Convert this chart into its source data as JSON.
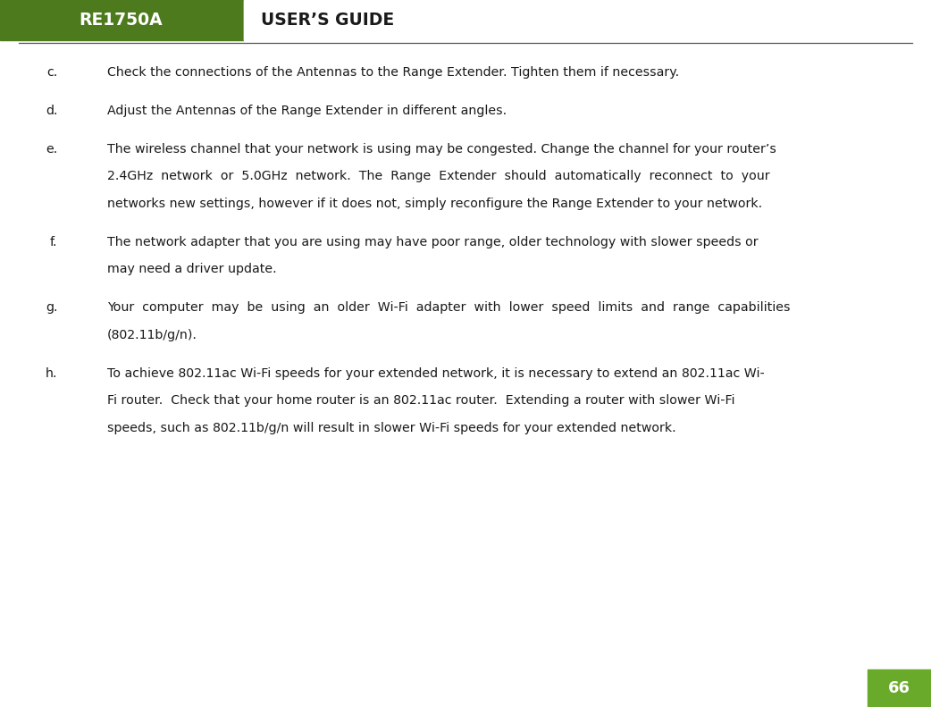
{
  "header_bg_color": "#4e7a1e",
  "header_text_re": "RE1750A",
  "header_text_guide": "USER’S GUIDE",
  "page_bg_color": "#ffffff",
  "footer_bg_color": "#6aaa2a",
  "footer_text": "66",
  "footer_text_color": "#ffffff",
  "body_text_color": "#1a1a1a",
  "figsize": [
    10.42,
    7.91
  ],
  "dpi": 100,
  "items": [
    {
      "label": "c.",
      "lines": [
        "Check the connections of the Antennas to the Range Extender. Tighten them if necessary."
      ]
    },
    {
      "label": "d.",
      "lines": [
        "Adjust the Antennas of the Range Extender in different angles."
      ]
    },
    {
      "label": "e.",
      "lines": [
        "The wireless channel that your network is using may be congested. Change the channel for your router’s",
        "2.4GHz  network  or  5.0GHz  network.  The  Range  Extender  should  automatically  reconnect  to  your",
        "networks new settings, however if it does not, simply reconfigure the Range Extender to your network."
      ]
    },
    {
      "label": "f.",
      "lines": [
        "The network adapter that you are using may have poor range, older technology with slower speeds or",
        "may need a driver update."
      ]
    },
    {
      "label": "g.",
      "lines": [
        "Your  computer  may  be  using  an  older  Wi-Fi  adapter  with  lower  speed  limits  and  range  capabilities",
        "(802.11b/g/n)."
      ]
    },
    {
      "label": "h.",
      "lines": [
        "To achieve 802.11ac Wi-Fi speeds for your extended network, it is necessary to extend an 802.11ac Wi-",
        "Fi router.  Check that your home router is an 802.11ac router.  Extending a router with slower Wi-Fi",
        "speeds, such as 802.11b/g/n will result in slower Wi-Fi speeds for your extended network."
      ]
    }
  ]
}
